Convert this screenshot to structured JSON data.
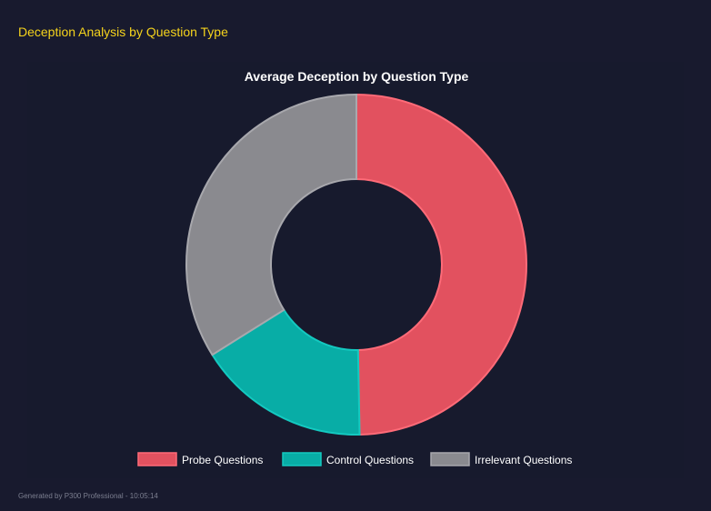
{
  "header": {
    "title": "Deception Analysis by Question Type"
  },
  "footer": {
    "text": "Generated by P300 Professional - 10:05:14"
  },
  "chart_data": {
    "type": "doughnut",
    "title": "Average Deception by Question Type",
    "categories": [
      "Probe Questions",
      "Control Questions",
      "Irrelevant Questions"
    ],
    "values": [
      49.7,
      16.4,
      33.9
    ],
    "colors": [
      "#e2515f",
      "#08ada6",
      "#8a8a8f"
    ],
    "border_colors": [
      "#ff6b78",
      "#14c9c0",
      "#a8a8ad"
    ],
    "legend": {
      "position": "bottom"
    }
  }
}
